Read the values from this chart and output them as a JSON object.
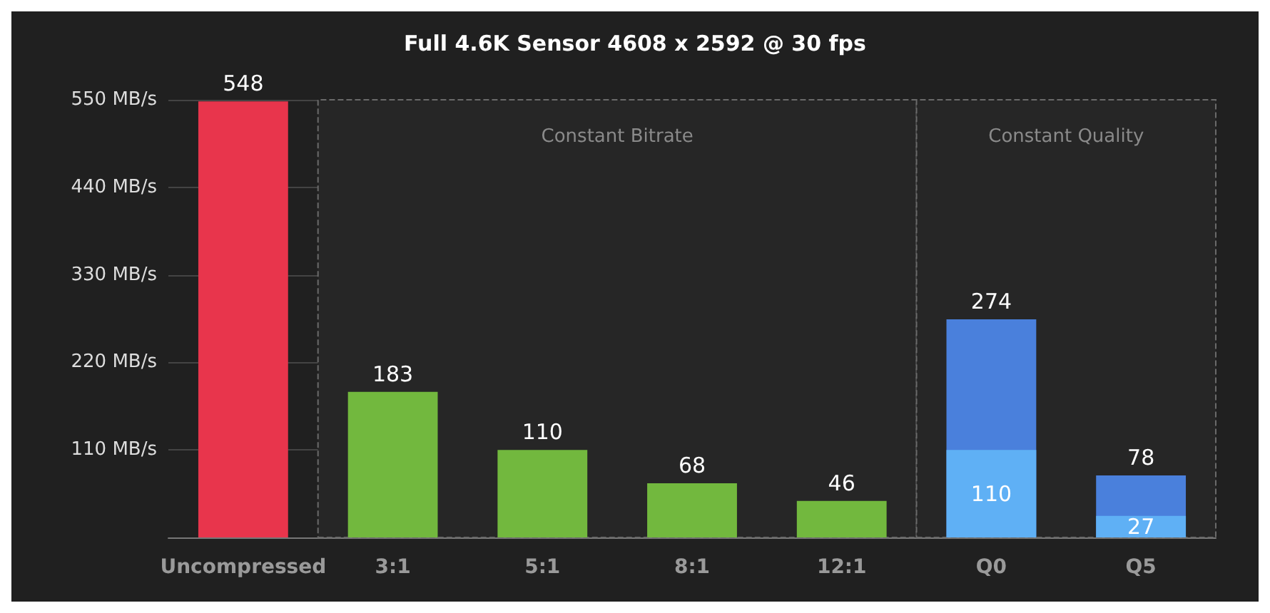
{
  "chart_data": {
    "type": "bar",
    "title": "Full 4.6K Sensor 4608 x 2592 @ 30 fps",
    "categories": [
      "Uncompressed",
      "3:1",
      "5:1",
      "8:1",
      "12:1",
      "Q0",
      "Q5"
    ],
    "series": [
      {
        "colors": [
          "#e8354c",
          "#72b83e",
          "#72b83e",
          "#72b83e",
          "#72b83e",
          "#4a80dc",
          "#4a80dc"
        ],
        "values": [
          548,
          183,
          110,
          68,
          46,
          274,
          78
        ]
      },
      {
        "color": "#5fb0f5",
        "values": [
          null,
          null,
          null,
          null,
          null,
          110,
          27
        ]
      }
    ],
    "data_labels": true,
    "ylim": [
      0,
      550
    ],
    "yticks": [
      {
        "value": 110,
        "label": "110 MB/s"
      },
      {
        "value": 220,
        "label": "220 MB/s"
      },
      {
        "value": 330,
        "label": "330 MB/s"
      },
      {
        "value": 440,
        "label": "440 MB/s"
      },
      {
        "value": 550,
        "label": "550 MB/s"
      }
    ],
    "grid": "y",
    "bands": [
      {
        "axis": "x",
        "from": "3:1",
        "to": "12:1",
        "label": "Constant Bitrate",
        "color": "#262626"
      },
      {
        "axis": "x",
        "from": "Q0",
        "to": "Q5",
        "label": "Constant Quality",
        "color": "#262626"
      }
    ]
  }
}
